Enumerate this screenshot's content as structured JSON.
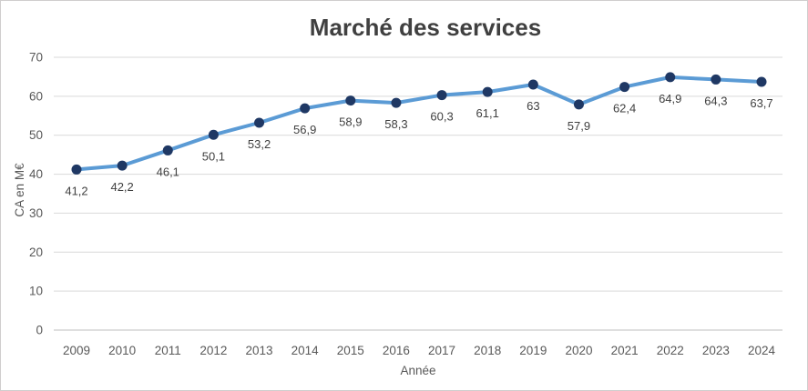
{
  "chart_data": {
    "type": "line",
    "title": "Marché des services",
    "xlabel": "Année",
    "ylabel": "CA en M€",
    "categories": [
      "2009",
      "2010",
      "2011",
      "2012",
      "2013",
      "2014",
      "2015",
      "2016",
      "2017",
      "2018",
      "2019",
      "2020",
      "2021",
      "2022",
      "2023",
      "2024"
    ],
    "values": [
      41.2,
      42.2,
      46.1,
      50.1,
      53.2,
      56.9,
      58.9,
      58.3,
      60.3,
      61.1,
      63,
      57.9,
      62.4,
      64.9,
      64.3,
      63.7
    ],
    "point_labels": [
      "41,2",
      "42,2",
      "46,1",
      "50,1",
      "53,2",
      "56,9",
      "58,9",
      "58,3",
      "60,3",
      "61,1",
      "63",
      "57,9",
      "62,4",
      "64,9",
      "64,3",
      "63,7"
    ],
    "ylim": [
      0,
      70
    ],
    "ytick_step": 10,
    "yticks": [
      "0",
      "10",
      "20",
      "30",
      "40",
      "50",
      "60",
      "70"
    ],
    "grid": true,
    "legend": "none",
    "colors": {
      "line": "#5B9BD5",
      "marker": "#1F3864",
      "data_label": "#404040",
      "axis_text": "#595959",
      "gridline": "#D9D9D9",
      "axis_line": "#BFBFBF",
      "title": "#404040",
      "background": "#FFFFFF",
      "border": "#D0CECE"
    }
  }
}
